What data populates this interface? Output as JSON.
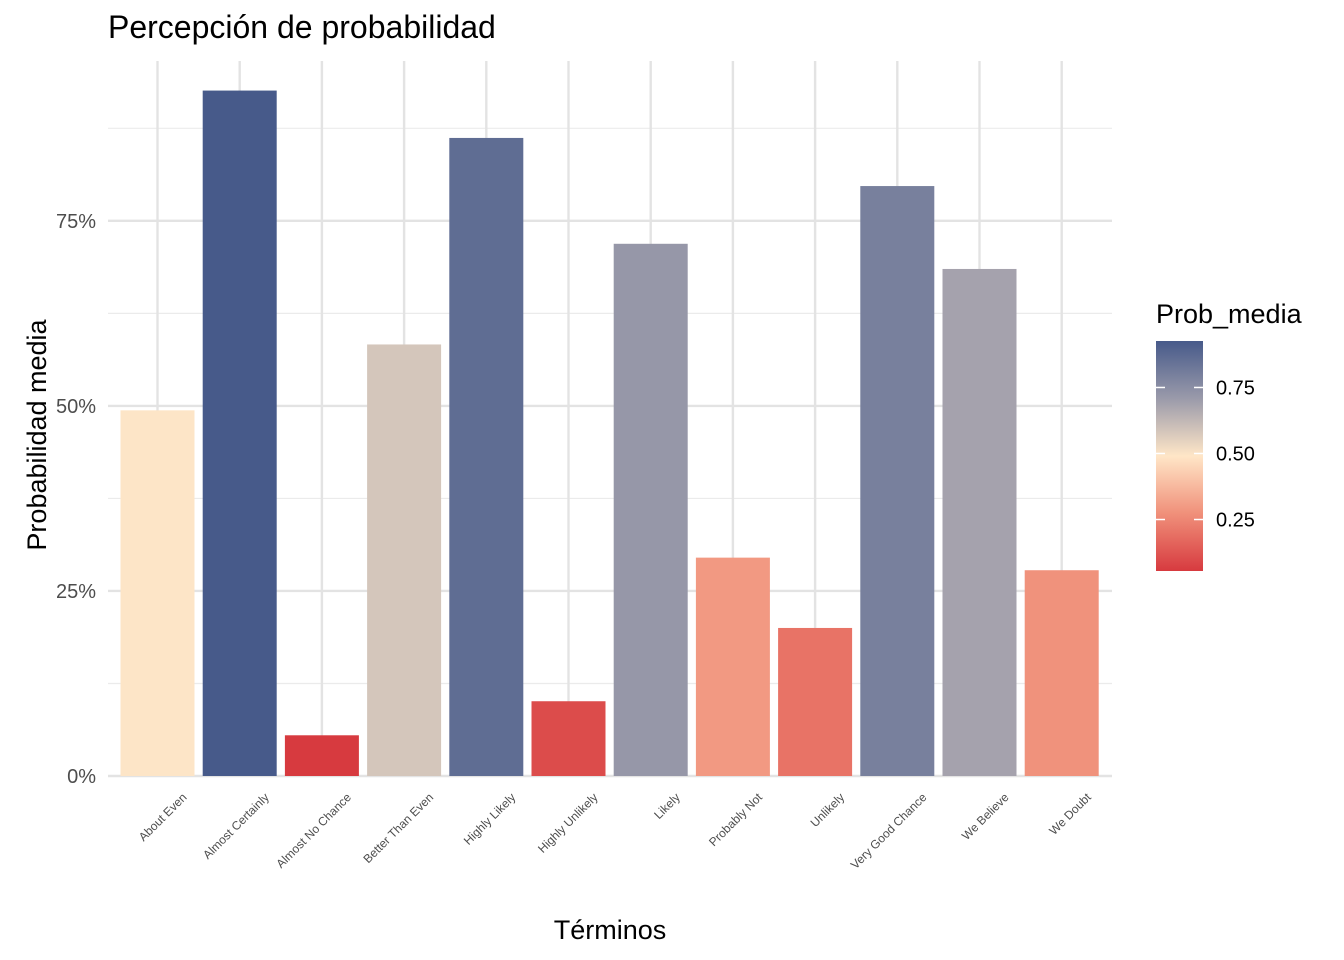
{
  "chart_data": {
    "type": "bar",
    "title": "Percepción de probabilidad",
    "xlabel": "Términos",
    "ylabel": "Probabilidad media",
    "ylim": [
      0,
      0.97
    ],
    "y_ticks": [
      0,
      0.25,
      0.5,
      0.75
    ],
    "y_tick_labels": [
      "0%",
      "25%",
      "50%",
      "75%"
    ],
    "grid": true,
    "categories": [
      "About Even",
      "Almost Certainly",
      "Almost No Chance",
      "Better Than Even",
      "Highly Likely",
      "Highly Unlikely",
      "Likely",
      "Probably Not",
      "Unlikely",
      "Very Good Chance",
      "We Believe",
      "We Doubt"
    ],
    "values": [
      0.494,
      0.926,
      0.055,
      0.583,
      0.862,
      0.101,
      0.719,
      0.295,
      0.2,
      0.797,
      0.685,
      0.278
    ],
    "legend": {
      "title": "Prob_media",
      "position": "right",
      "ticks": [
        0.25,
        0.5,
        0.75
      ],
      "tick_labels": [
        "0.25",
        "0.50",
        "0.75"
      ],
      "range": [
        0.055,
        0.926
      ],
      "gradient_colors": [
        "#d73a3f",
        "#f0907a",
        "#ffe6c7",
        "#9a9aaa",
        "#475a8a"
      ]
    }
  }
}
